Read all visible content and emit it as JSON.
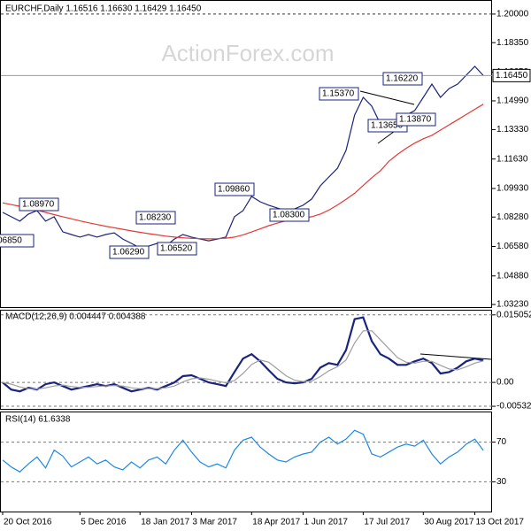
{
  "chart_data": [
    {
      "type": "line",
      "title": "EURCHF,Daily  1.16516 1.16630 1.16429 1.16450",
      "watermark": "ActionForex.com",
      "categories": [
        "20 Oct 2016",
        null,
        null,
        null,
        null,
        null,
        null,
        null,
        null,
        "5 Dec 2016",
        null,
        null,
        null,
        null,
        null,
        null,
        "18 Jan 2017",
        null,
        null,
        null,
        null,
        null,
        "3 Mar 2017",
        null,
        null,
        null,
        null,
        null,
        null,
        "18 Apr 2017",
        null,
        null,
        null,
        null,
        null,
        "1 Jun 2017",
        null,
        null,
        null,
        null,
        null,
        null,
        "17 Jul 2017",
        null,
        null,
        null,
        null,
        null,
        null,
        "30 Aug 2017",
        null,
        null,
        null,
        null,
        null,
        "13 Oct 2017",
        null
      ],
      "series": [
        {
          "color": "#1a237e",
          "values": [
            1.0855,
            1.083,
            1.0804,
            1.0845,
            1.0865,
            1.0804,
            1.083,
            1.0743,
            1.0727,
            1.0712,
            1.0727,
            1.0712,
            1.0727,
            1.0737,
            1.0701,
            1.0676,
            1.065,
            1.066,
            1.0676,
            1.066,
            1.0701,
            1.0727,
            1.0712,
            1.0701,
            1.0691,
            1.0701,
            1.0712,
            1.083,
            1.0865,
            1.0947,
            1.0916,
            1.0896,
            1.088,
            1.0865,
            1.0875,
            1.0896,
            1.0932,
            1.1008,
            1.1059,
            1.111,
            1.1213,
            1.1417,
            1.1519,
            1.1468,
            1.1366,
            1.1341,
            1.1392,
            1.1417,
            1.1443,
            1.1519,
            1.1596,
            1.1519,
            1.157,
            1.1596,
            1.1647,
            1.1698,
            1.1645
          ]
        },
        {
          "color": "#e53935",
          "values": [
            1.091,
            1.09,
            1.089,
            1.088,
            1.0868,
            1.0855,
            1.0842,
            1.083,
            1.0818,
            1.0806,
            1.0795,
            1.0785,
            1.0775,
            1.0766,
            1.0757,
            1.0748,
            1.074,
            1.0732,
            1.0725,
            1.0718,
            1.0712,
            1.0708,
            1.0705,
            1.0703,
            1.0702,
            1.0703,
            1.0706,
            1.0712,
            1.0725,
            1.0742,
            1.076,
            1.0778,
            1.0793,
            1.0806,
            1.0815,
            1.0822,
            1.083,
            1.0845,
            1.0868,
            1.0898,
            1.093,
            1.0965,
            1.101,
            1.1055,
            1.1095,
            1.115,
            1.119,
            1.1225,
            1.1255,
            1.128,
            1.13,
            1.133,
            1.136,
            1.139,
            1.142,
            1.145,
            1.148
          ]
        }
      ],
      "ylim": [
        1.0308,
        1.2066
      ],
      "yticks": [
        {
          "value": 1.2,
          "label": "1.20000"
        },
        {
          "value": 1.1835,
          "label": "1.18350"
        },
        {
          "value": 1.1665,
          "label": "1.16650"
        },
        {
          "value": 1.1499,
          "label": "1.14990"
        },
        {
          "value": 1.1333,
          "label": "1.13330"
        },
        {
          "value": 1.1163,
          "label": "1.11630"
        },
        {
          "value": 1.0993,
          "label": "1.09930"
        },
        {
          "value": 1.0828,
          "label": "1.08280"
        },
        {
          "value": 1.0658,
          "label": "1.06580"
        },
        {
          "value": 1.0488,
          "label": "1.04880"
        },
        {
          "value": 1.0323,
          "label": "1.03230"
        }
      ],
      "levels": [
        1.2
      ],
      "last_price": {
        "value": 1.1645,
        "label": "1.16450"
      },
      "grid": false,
      "annotations": [
        "1.08970",
        "06850",
        "1.08230",
        "1.06290",
        "1.06520",
        "1.09860",
        "1.08300",
        "1.15370",
        "1.13650",
        "1.13870",
        "1.16220"
      ]
    },
    {
      "type": "line",
      "title": "MACD(12,26,9) 0.004447 0.004388",
      "series": [
        {
          "color": "#1a237e",
          "values": [
            0,
            -0.0016,
            -0.002,
            -0.0012,
            -0.0016,
            -0.0004,
            0,
            -0.0008,
            -0.0016,
            -0.0012,
            -0.0008,
            -0.0004,
            -0.0008,
            -0.0004,
            -0.0012,
            -0.002,
            -0.0016,
            -0.0012,
            -0.0016,
            -0.0008,
            0,
            0.0014,
            0.0016,
            0.0008,
            0,
            -0.0004,
            -0.0008,
            0.0023,
            0.0053,
            0.0063,
            0.0047,
            0.0027,
            0.0008,
            0,
            -0.0002,
            0,
            0.0008,
            0.0033,
            0.0043,
            0.0039,
            0.0072,
            0.0141,
            0.0145,
            0.0092,
            0.0063,
            0.0053,
            0.0039,
            0.0039,
            0.0047,
            0.0053,
            0.0043,
            0.002,
            0.0023,
            0.0033,
            0.0047,
            0.0053,
            0.0049
          ]
        },
        {
          "color": "#9e9e9e",
          "values": [
            0,
            -0.0004,
            -0.001,
            -0.0014,
            -0.0015,
            -0.0012,
            -0.0008,
            -0.0006,
            -0.0009,
            -0.0011,
            -0.0011,
            -0.0009,
            -0.0008,
            -0.0007,
            -0.0008,
            -0.0012,
            -0.0014,
            -0.0014,
            -0.0014,
            -0.0012,
            -0.0008,
            0.0001,
            0.0008,
            0.001,
            0.0007,
            0.0003,
            -0.0001,
            0.0004,
            0.002,
            0.004,
            0.005,
            0.0045,
            0.003,
            0.0015,
            0.0005,
            0.0002,
            0.0003,
            0.0013,
            0.0026,
            0.0035,
            0.005,
            0.0088,
            0.0115,
            0.0115,
            0.0095,
            0.0075,
            0.0055,
            0.0045,
            0.0043,
            0.0047,
            0.0047,
            0.0038,
            0.003,
            0.0028,
            0.0035,
            0.0043,
            0.0048
          ]
        }
      ],
      "ylim": [
        -0.0059,
        0.016
      ],
      "yticks": [
        0.015052,
        {
          "value": 0,
          "label": "0.00"
        },
        -0.00532
      ],
      "grid": true
    },
    {
      "type": "line",
      "title": "RSI(14) 61.6338",
      "series": [
        {
          "color": "#1e88e5",
          "values": [
            52,
            45,
            40,
            48,
            55,
            44,
            62,
            56,
            45,
            50,
            55,
            48,
            52,
            45,
            42,
            50,
            44,
            52,
            55,
            48,
            62,
            72,
            60,
            50,
            45,
            48,
            44,
            62,
            72,
            75,
            65,
            58,
            52,
            50,
            55,
            58,
            60,
            70,
            75,
            68,
            73,
            82,
            78,
            58,
            55,
            60,
            65,
            68,
            66,
            72,
            58,
            48,
            55,
            60,
            68,
            73,
            61.6338
          ]
        }
      ],
      "ylim": [
        0,
        100
      ],
      "yticks": [
        70,
        30
      ],
      "grid": true
    }
  ]
}
